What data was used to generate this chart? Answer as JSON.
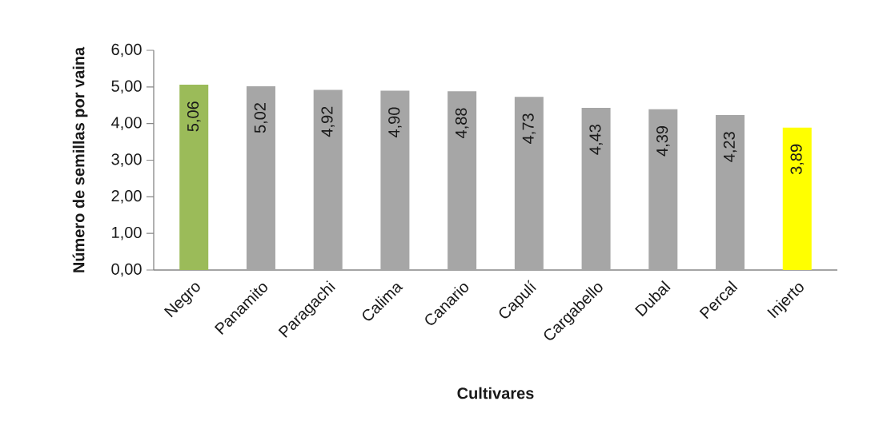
{
  "chart_data": {
    "type": "bar",
    "xlabel": "Cultivares",
    "ylabel": "Número de semillas por vaina",
    "categories": [
      "Negro",
      "Panamito",
      "Paragachi",
      "Calima",
      "Canario",
      "Capulí",
      "Cargabello",
      "Dubal",
      "Percal",
      "Injerto"
    ],
    "values": [
      5.06,
      5.02,
      4.92,
      4.9,
      4.88,
      4.73,
      4.43,
      4.39,
      4.23,
      3.89
    ],
    "colors": [
      "#9bbb59",
      "#a6a6a6",
      "#a6a6a6",
      "#a6a6a6",
      "#a6a6a6",
      "#a6a6a6",
      "#a6a6a6",
      "#a6a6a6",
      "#a6a6a6",
      "#ffff00"
    ],
    "value_labels": [
      "5,06",
      "5,02",
      "4,92",
      "4,90",
      "4,88",
      "4,73",
      "4,43",
      "4,39",
      "4,23",
      "3,89"
    ],
    "ylim": [
      0,
      6
    ],
    "yticks": [
      {
        "value": 0,
        "label": "0,00"
      },
      {
        "value": 1,
        "label": "1,00"
      },
      {
        "value": 2,
        "label": "2,00"
      },
      {
        "value": 3,
        "label": "3,00"
      },
      {
        "value": 4,
        "label": "4,00"
      },
      {
        "value": 5,
        "label": "5,00"
      },
      {
        "value": 6,
        "label": "6,00"
      }
    ]
  }
}
